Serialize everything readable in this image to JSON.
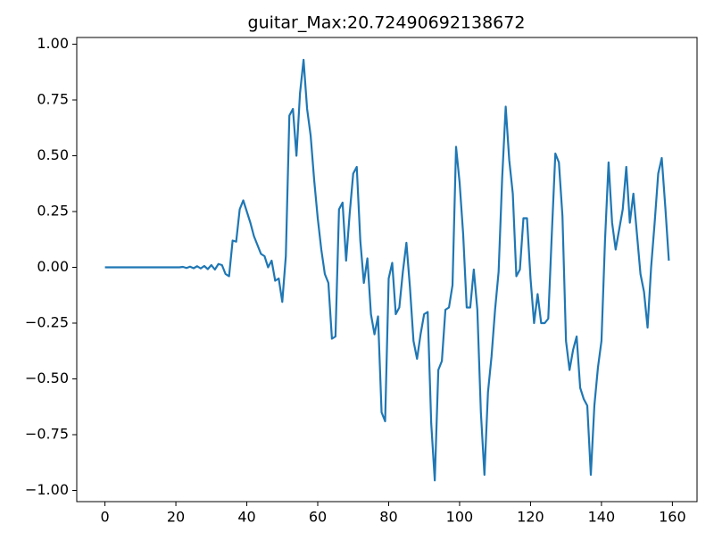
{
  "chart_data": {
    "type": "line",
    "title": "guitar_Max:20.72490692138672",
    "x": [
      0,
      1,
      2,
      3,
      4,
      5,
      6,
      7,
      8,
      9,
      10,
      11,
      12,
      13,
      14,
      15,
      16,
      17,
      18,
      19,
      20,
      21,
      22,
      23,
      24,
      25,
      26,
      27,
      28,
      29,
      30,
      31,
      32,
      33,
      34,
      35,
      36,
      37,
      38,
      39,
      40,
      41,
      42,
      43,
      44,
      45,
      46,
      47,
      48,
      49,
      50,
      51,
      52,
      53,
      54,
      55,
      56,
      57,
      58,
      59,
      60,
      61,
      62,
      63,
      64,
      65,
      66,
      67,
      68,
      69,
      70,
      71,
      72,
      73,
      74,
      75,
      76,
      77,
      78,
      79,
      80,
      81,
      82,
      83,
      84,
      85,
      86,
      87,
      88,
      89,
      90,
      91,
      92,
      93,
      94,
      95,
      96,
      97,
      98,
      99,
      100,
      101,
      102,
      103,
      104,
      105,
      106,
      107,
      108,
      109,
      110,
      111,
      112,
      113,
      114,
      115,
      116,
      117,
      118,
      119,
      120,
      121,
      122,
      123,
      124,
      125,
      126,
      127,
      128,
      129,
      130,
      131,
      132,
      133,
      134,
      135,
      136,
      137,
      138,
      139,
      140,
      141,
      142,
      143,
      144,
      145,
      146,
      147,
      148,
      149,
      150,
      151,
      152,
      153,
      154,
      155,
      156,
      157,
      158,
      159
    ],
    "series": [
      {
        "color": "#1f77b4",
        "values": [
          0,
          0,
          0,
          0,
          0,
          0,
          0,
          0,
          0,
          0,
          0,
          0,
          0,
          0,
          0,
          0,
          0,
          0,
          0,
          0,
          0,
          0,
          0.002,
          -0.003,
          0.003,
          -0.004,
          0.005,
          -0.005,
          0.006,
          -0.008,
          0.01,
          -0.01,
          0.015,
          0.01,
          -0.03,
          -0.04,
          0.12,
          0.115,
          0.26,
          0.3,
          0.25,
          0.2,
          0.14,
          0.1,
          0.06,
          0.05,
          0,
          0.03,
          -0.06,
          -0.05,
          -0.155,
          0.05,
          0.68,
          0.71,
          0.5,
          0.78,
          0.93,
          0.71,
          0.59,
          0.39,
          0.22,
          0.08,
          -0.03,
          -0.07,
          -0.32,
          -0.31,
          0.26,
          0.29,
          0.03,
          0.24,
          0.42,
          0.45,
          0.12,
          -0.07,
          0.04,
          -0.21,
          -0.3,
          -0.22,
          -0.65,
          -0.69,
          -0.05,
          0.02,
          -0.21,
          -0.18,
          -0.02,
          0.11,
          -0.09,
          -0.33,
          -0.41,
          -0.3,
          -0.21,
          -0.2,
          -0.7,
          -0.955,
          -0.46,
          -0.42,
          -0.19,
          -0.18,
          -0.08,
          0.54,
          0.38,
          0.15,
          -0.18,
          -0.18,
          -0.01,
          -0.19,
          -0.65,
          -0.93,
          -0.56,
          -0.4,
          -0.19,
          -0.02,
          0.4,
          0.72,
          0.48,
          0.33,
          -0.04,
          -0.01,
          0.22,
          0.22,
          -0.05,
          -0.25,
          -0.12,
          -0.25,
          -0.25,
          -0.23,
          0.15,
          0.51,
          0.47,
          0.23,
          -0.33,
          -0.46,
          -0.37,
          -0.31,
          -0.54,
          -0.59,
          -0.62,
          -0.93,
          -0.62,
          -0.45,
          -0.33,
          0.12,
          0.47,
          0.2,
          0.08,
          0.17,
          0.26,
          0.45,
          0.2,
          0.33,
          0.15,
          -0.03,
          -0.11,
          -0.27,
          0,
          0.2,
          0.42,
          0.49,
          0.27,
          0.03
        ]
      }
    ],
    "xlim": [
      -7.95,
      166.95
    ],
    "xticks": [
      0,
      20,
      40,
      60,
      80,
      100,
      120,
      140,
      160
    ],
    "ylim": [
      -1.05,
      1.03
    ],
    "yticks": [
      {
        "value": -1,
        "label": "−1.00"
      },
      {
        "value": -0.75,
        "label": "−0.75"
      },
      {
        "value": -0.5,
        "label": "−0.50"
      },
      {
        "value": -0.25,
        "label": "−0.25"
      },
      {
        "value": 0,
        "label": "0.00"
      },
      {
        "value": 0.25,
        "label": "0.25"
      },
      {
        "value": 0.5,
        "label": "0.50"
      },
      {
        "value": 0.75,
        "label": "0.75"
      },
      {
        "value": 1,
        "label": "1.00"
      }
    ],
    "grid": false
  }
}
